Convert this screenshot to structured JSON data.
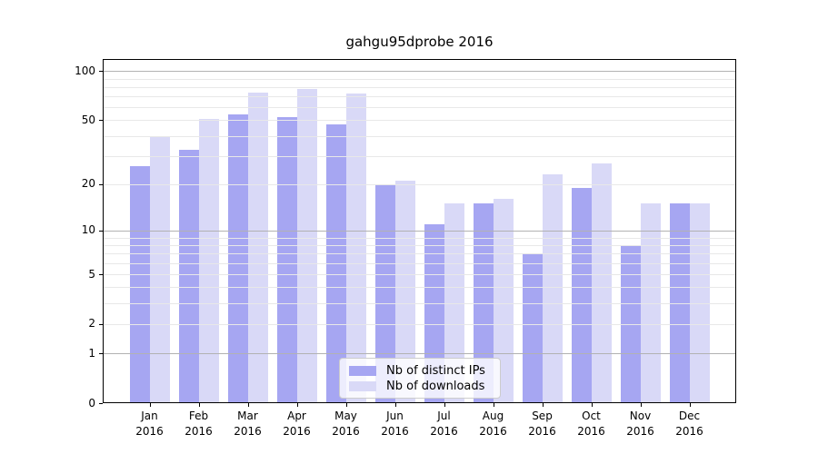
{
  "chart_data": {
    "type": "bar",
    "title": "gahgu95dprobe 2016",
    "categories": [
      "Jan",
      "Feb",
      "Mar",
      "Apr",
      "May",
      "Jun",
      "Jul",
      "Aug",
      "Sep",
      "Oct",
      "Nov",
      "Dec"
    ],
    "year": "2016",
    "series": [
      {
        "name": "Nb of distinct IPs",
        "key": "distinct-ips",
        "color": "#a6a6f2",
        "values": [
          26,
          33,
          54,
          52,
          47,
          20,
          11,
          15,
          7,
          19,
          8,
          15
        ]
      },
      {
        "name": "Nb of downloads",
        "key": "downloads",
        "color": "#d9d9f7",
        "values": [
          40,
          51,
          74,
          78,
          73,
          21,
          15,
          16,
          23,
          27,
          15,
          15
        ]
      }
    ],
    "xlabel": "",
    "ylabel": "",
    "yscale": "log1p",
    "ylim": [
      0,
      118
    ],
    "yticks": [
      0,
      1,
      2,
      5,
      10,
      20,
      50,
      100
    ],
    "major_gridlines": [
      1,
      10,
      100
    ],
    "minor_gridlines": [
      2,
      3,
      4,
      5,
      6,
      7,
      8,
      9,
      20,
      30,
      40,
      50,
      60,
      70,
      80,
      90
    ],
    "grid": true,
    "legend_position": "lower center",
    "colors": {
      "major_grid": "#b2b2b2",
      "minor_grid": "#e8e8e8",
      "axis": "#000000",
      "text": "#000000",
      "background": "#ffffff"
    }
  }
}
